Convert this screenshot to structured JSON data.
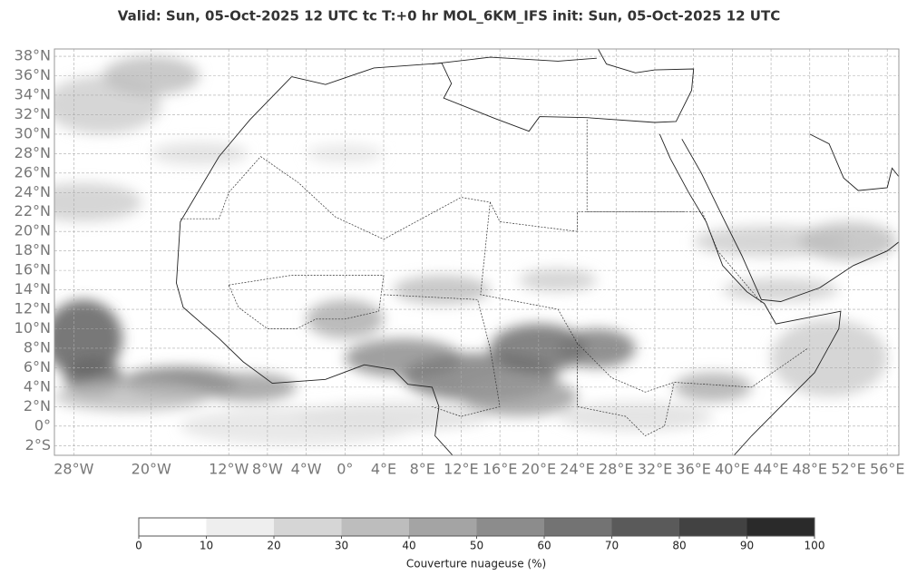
{
  "header": {
    "title": "Valid: Sun, 05-Oct-2025   12 UTC   tc   T:+0 hr   MOL_6KM_IFS      init: Sun, 05-Oct-2025   12 UTC"
  },
  "map": {
    "lon_range": [
      -30,
      57.2
    ],
    "lat_range": [
      -3,
      38.75
    ],
    "lat_ticks": [
      {
        "value": 38,
        "label": "38°N"
      },
      {
        "value": 36,
        "label": "36°N"
      },
      {
        "value": 34,
        "label": "34°N"
      },
      {
        "value": 32,
        "label": "32°N"
      },
      {
        "value": 30,
        "label": "30°N"
      },
      {
        "value": 28,
        "label": "28°N"
      },
      {
        "value": 26,
        "label": "26°N"
      },
      {
        "value": 24,
        "label": "24°N"
      },
      {
        "value": 22,
        "label": "22°N"
      },
      {
        "value": 20,
        "label": "20°N"
      },
      {
        "value": 18,
        "label": "18°N"
      },
      {
        "value": 16,
        "label": "16°N"
      },
      {
        "value": 14,
        "label": "14°N"
      },
      {
        "value": 12,
        "label": "12°N"
      },
      {
        "value": 10,
        "label": "10°N"
      },
      {
        "value": 8,
        "label": "8°N"
      },
      {
        "value": 6,
        "label": "6°N"
      },
      {
        "value": 4,
        "label": "4°N"
      },
      {
        "value": 2,
        "label": "2°N"
      },
      {
        "value": 0,
        "label": "0°"
      },
      {
        "value": -2,
        "label": "2°S"
      }
    ],
    "lon_ticks": [
      {
        "value": -28,
        "label": "28°W"
      },
      {
        "value": -20,
        "label": "20°W"
      },
      {
        "value": -12,
        "label": "12°W"
      },
      {
        "value": -8,
        "label": "8°W"
      },
      {
        "value": -4,
        "label": "4°W"
      },
      {
        "value": 0,
        "label": "0°"
      },
      {
        "value": 4,
        "label": "4°E"
      },
      {
        "value": 8,
        "label": "8°E"
      },
      {
        "value": 12,
        "label": "12°E"
      },
      {
        "value": 16,
        "label": "16°E"
      },
      {
        "value": 20,
        "label": "20°E"
      },
      {
        "value": 24,
        "label": "24°E"
      },
      {
        "value": 28,
        "label": "28°E"
      },
      {
        "value": 32,
        "label": "32°E"
      },
      {
        "value": 36,
        "label": "36°E"
      },
      {
        "value": 40,
        "label": "40°E"
      },
      {
        "value": 44,
        "label": "44°E"
      },
      {
        "value": 48,
        "label": "48°E"
      },
      {
        "value": 52,
        "label": "52°E"
      },
      {
        "value": 56,
        "label": "56°E"
      }
    ]
  },
  "colorbar": {
    "label": "Couverture nuageuse (%)",
    "ticks": [
      0,
      10,
      20,
      30,
      40,
      50,
      60,
      70,
      80,
      90,
      100
    ],
    "colors": [
      "#ffffff",
      "#eeeeee",
      "#d6d6d6",
      "#bdbdbd",
      "#a4a4a4",
      "#8c8c8c",
      "#737373",
      "#5a5a5a",
      "#424242",
      "#2a2a2a"
    ]
  }
}
